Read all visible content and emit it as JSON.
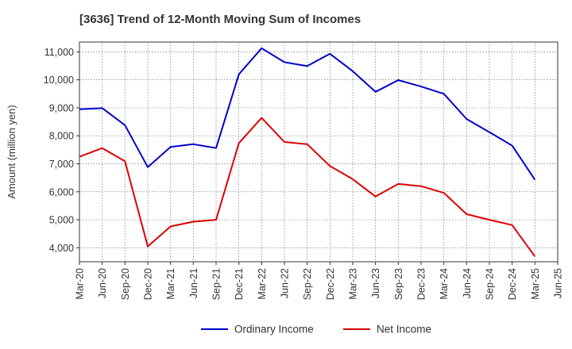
{
  "chart_data": {
    "type": "line",
    "title": "[3636]  Trend of 12-Month Moving Sum of Incomes",
    "xlabel": "",
    "ylabel": "Amount (million yen)",
    "ylim": [
      3500,
      11350
    ],
    "yticks": [
      4000,
      5000,
      6000,
      7000,
      8000,
      9000,
      10000,
      11000
    ],
    "ytick_labels": [
      "4,000",
      "5,000",
      "6,000",
      "7,000",
      "8,000",
      "9,000",
      "10,000",
      "11,000"
    ],
    "categories": [
      "Mar-20",
      "Jun-20",
      "Sep-20",
      "Dec-20",
      "Mar-21",
      "Jun-21",
      "Sep-21",
      "Dec-21",
      "Mar-22",
      "Jun-22",
      "Sep-22",
      "Dec-22",
      "Mar-23",
      "Jun-23",
      "Sep-23",
      "Dec-23",
      "Mar-24",
      "Jun-24",
      "Sep-24",
      "Dec-24",
      "Mar-25",
      "Jun-25"
    ],
    "grid": true,
    "legend_position": "bottom-center",
    "series": [
      {
        "name": "Ordinary Income",
        "color": "#0000cc",
        "values": [
          8950,
          8990,
          8380,
          6880,
          7600,
          7700,
          7560,
          10200,
          11130,
          10630,
          10490,
          10930,
          10310,
          9570,
          9990,
          9760,
          9500,
          8600,
          8130,
          7650,
          6430,
          null
        ]
      },
      {
        "name": "Net Income",
        "color": "#dd0000",
        "values": [
          7250,
          7560,
          7090,
          4050,
          4760,
          4930,
          5000,
          7740,
          8640,
          7780,
          7700,
          6920,
          6450,
          5830,
          6280,
          6200,
          5960,
          5200,
          5000,
          4810,
          3690,
          null
        ]
      }
    ]
  }
}
